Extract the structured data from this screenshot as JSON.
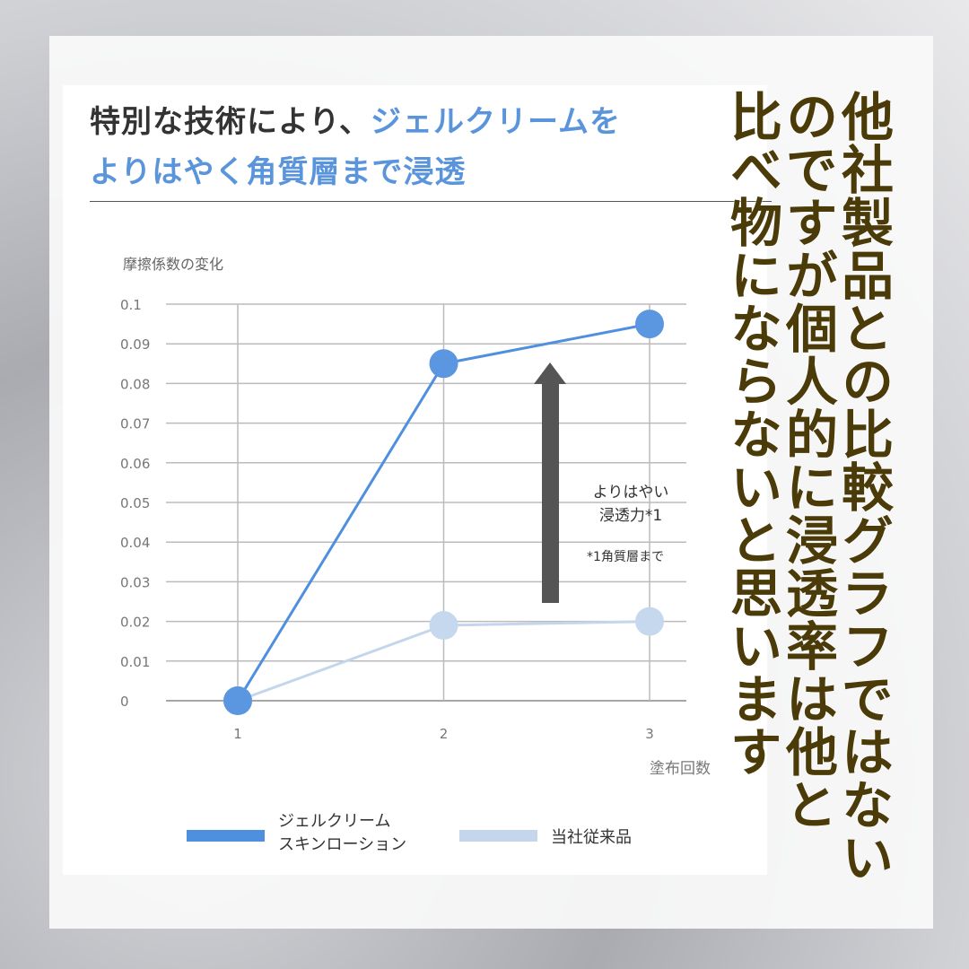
{
  "title": {
    "part1": "特別な技術により、",
    "part2": "ジェルクリームを",
    "part3": "よりはやく角質層まで浸透"
  },
  "overlay_text": [
    "他社製品との比較グラフではない",
    "のですが個人的に浸透率は他と",
    "比べ物にならないと思います"
  ],
  "chart_data": {
    "type": "line",
    "ylabel": "摩擦係数の変化",
    "xlabel": "塗布回数",
    "x": [
      1,
      2,
      3
    ],
    "xticks": [
      "1",
      "2",
      "3"
    ],
    "yticks": [
      "0",
      "0.01",
      "0.02",
      "0.03",
      "0.04",
      "0.05",
      "0.06",
      "0.07",
      "0.08",
      "0.09",
      "0.1"
    ],
    "ylim": [
      0,
      0.1
    ],
    "grid": true,
    "legend": "bottom",
    "series": [
      {
        "name": "ジェルクリーム スキンローション",
        "name_lines": [
          "ジェルクリーム",
          "スキンローション"
        ],
        "values": [
          0,
          0.085,
          0.095
        ],
        "color": "#4f8fdf",
        "marker": "#5b96e0"
      },
      {
        "name": "当社従来品",
        "name_lines": [
          "当社従来品"
        ],
        "values": [
          0,
          0.019,
          0.02
        ],
        "color": "#c3d6ec",
        "marker": "#c6d8ee"
      }
    ],
    "annotation": {
      "line1": "よりはやい",
      "line2": "浸透力*1",
      "footnote": "*1角質層まで",
      "arrow_color": "#555555"
    }
  }
}
